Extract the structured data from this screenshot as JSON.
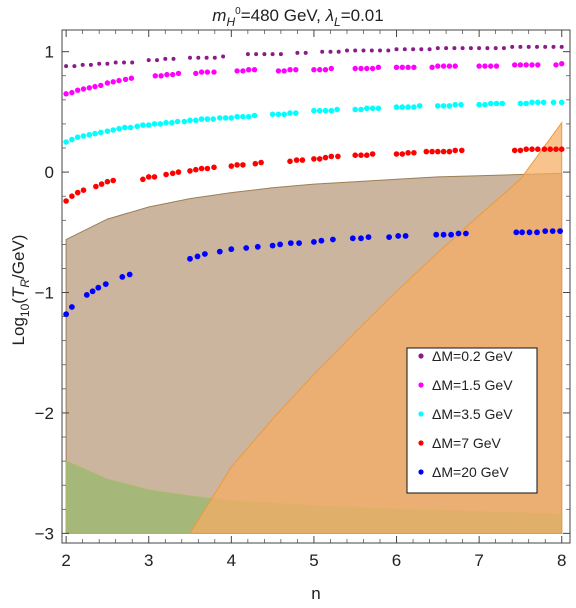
{
  "chart_data": {
    "type": "scatter",
    "title": {
      "m_sym": "m",
      "m_sub": "H",
      "m_sup": "0",
      "text": "=480 GeV, ",
      "lambda_sym": "λ",
      "lambda_sub": "L",
      "lambda_val": "=0.01"
    },
    "xlabel": "n",
    "ylabel": {
      "pre": "Log",
      "sub": "10",
      "mid": "(",
      "t": "T",
      "t_sub": "R",
      "post": "/GeV)"
    },
    "xlim": [
      1.95,
      8.1
    ],
    "ylim": [
      -3.08,
      1.18
    ],
    "xticks": [
      {
        "v": 2,
        "label": "2"
      },
      {
        "v": 3,
        "label": "3"
      },
      {
        "v": 4,
        "label": "4"
      },
      {
        "v": 5,
        "label": "5"
      },
      {
        "v": 6,
        "label": "6"
      },
      {
        "v": 7,
        "label": "7"
      },
      {
        "v": 8,
        "label": "8"
      }
    ],
    "yticks": [
      {
        "v": 1,
        "label": "1"
      },
      {
        "v": 0,
        "label": "0"
      },
      {
        "v": -1,
        "label": "−1"
      },
      {
        "v": -2,
        "label": "−2"
      },
      {
        "v": -3,
        "label": "−3"
      }
    ],
    "grid": false,
    "legend_position": "bottom-right",
    "regions": [
      {
        "name": "",
        "fill": "#b9987a",
        "stroke": "#9b7f55",
        "points": [
          [
            2.0,
            -3.0
          ],
          [
            2.0,
            -0.56
          ],
          [
            2.5,
            -0.39
          ],
          [
            3.0,
            -0.29
          ],
          [
            3.5,
            -0.22
          ],
          [
            4.0,
            -0.17
          ],
          [
            4.5,
            -0.13
          ],
          [
            5.0,
            -0.1
          ],
          [
            5.5,
            -0.08
          ],
          [
            6.0,
            -0.06
          ],
          [
            6.5,
            -0.04
          ],
          [
            7.0,
            -0.03
          ],
          [
            7.5,
            -0.02
          ],
          [
            8.0,
            -0.01
          ],
          [
            8.0,
            -3.0
          ]
        ]
      },
      {
        "name": "",
        "fill": "#97b86c",
        "stroke": "#a9bb6c",
        "points": [
          [
            2.0,
            -3.0
          ],
          [
            2.0,
            -2.4
          ],
          [
            2.5,
            -2.55
          ],
          [
            3.0,
            -2.64
          ],
          [
            3.5,
            -2.69
          ],
          [
            4.0,
            -2.73
          ],
          [
            5.0,
            -2.77
          ],
          [
            6.0,
            -2.8
          ],
          [
            7.0,
            -2.82
          ],
          [
            8.0,
            -2.84
          ],
          [
            8.0,
            -3.0
          ]
        ]
      },
      {
        "name": "",
        "fill": "#f7ac63",
        "stroke": "#ef9a3a",
        "points": [
          [
            3.5,
            -3.0
          ],
          [
            4.0,
            -2.45
          ],
          [
            4.5,
            -2.05
          ],
          [
            5.0,
            -1.68
          ],
          [
            5.5,
            -1.33
          ],
          [
            6.0,
            -0.99
          ],
          [
            6.5,
            -0.67
          ],
          [
            7.0,
            -0.36
          ],
          [
            7.5,
            -0.06
          ],
          [
            8.0,
            0.41
          ],
          [
            8.0,
            -3.0
          ]
        ]
      }
    ],
    "series": [
      {
        "name": "ΔM=0.2 GeV",
        "color": "#8b1a8b",
        "size": 2.0,
        "x": [
          2.0,
          2.1,
          2.2,
          2.3,
          2.4,
          2.5,
          2.6,
          2.7,
          2.8,
          3.0,
          3.1,
          3.2,
          3.3,
          3.5,
          3.6,
          3.7,
          3.8,
          3.9,
          4.2,
          4.3,
          4.4,
          4.5,
          4.6,
          4.8,
          4.9,
          5.1,
          5.2,
          5.3,
          5.4,
          5.5,
          5.6,
          5.7,
          5.8,
          5.9,
          6.0,
          6.1,
          6.2,
          6.3,
          6.4,
          6.5,
          6.6,
          6.7,
          6.8,
          6.9,
          7.0,
          7.1,
          7.2,
          7.3,
          7.4,
          7.5,
          7.6,
          7.7,
          7.8,
          7.9,
          8.0
        ],
        "y": [
          0.88,
          0.88,
          0.89,
          0.89,
          0.9,
          0.9,
          0.91,
          0.91,
          0.91,
          0.93,
          0.93,
          0.94,
          0.94,
          0.95,
          0.95,
          0.95,
          0.95,
          0.96,
          0.98,
          0.98,
          0.98,
          0.98,
          0.98,
          0.99,
          0.99,
          1.0,
          1.0,
          1.0,
          1.01,
          1.01,
          1.01,
          1.01,
          1.01,
          1.01,
          1.02,
          1.02,
          1.02,
          1.02,
          1.02,
          1.03,
          1.03,
          1.03,
          1.03,
          1.03,
          1.03,
          1.03,
          1.03,
          1.03,
          1.04,
          1.04,
          1.04,
          1.04,
          1.04,
          1.04,
          1.04
        ]
      },
      {
        "name": "ΔM=1.5 GeV",
        "color": "#ff00ff",
        "size": 2.7,
        "x": [
          2.0,
          2.07,
          2.14,
          2.21,
          2.28,
          2.35,
          2.42,
          2.5,
          2.57,
          2.64,
          2.72,
          2.79,
          3.08,
          3.15,
          3.22,
          3.29,
          3.36,
          3.57,
          3.64,
          3.71,
          3.79,
          4.07,
          4.14,
          4.21,
          4.28,
          4.57,
          4.64,
          4.71,
          4.78,
          5.0,
          5.07,
          5.14,
          5.21,
          5.5,
          5.57,
          5.64,
          5.71,
          5.78,
          6.0,
          6.07,
          6.14,
          6.21,
          6.43,
          6.5,
          6.57,
          6.64,
          6.71,
          7.0,
          7.07,
          7.14,
          7.21,
          7.43,
          7.5,
          7.57,
          7.64,
          7.71,
          7.93,
          8.0
        ],
        "y": [
          0.65,
          0.66,
          0.68,
          0.69,
          0.7,
          0.71,
          0.72,
          0.74,
          0.75,
          0.76,
          0.77,
          0.78,
          0.8,
          0.8,
          0.81,
          0.81,
          0.82,
          0.82,
          0.83,
          0.83,
          0.83,
          0.84,
          0.84,
          0.85,
          0.85,
          0.84,
          0.84,
          0.85,
          0.85,
          0.85,
          0.85,
          0.85,
          0.86,
          0.86,
          0.86,
          0.86,
          0.86,
          0.87,
          0.87,
          0.87,
          0.87,
          0.87,
          0.87,
          0.88,
          0.88,
          0.88,
          0.88,
          0.88,
          0.88,
          0.88,
          0.88,
          0.89,
          0.89,
          0.89,
          0.89,
          0.89,
          0.89,
          0.9
        ]
      },
      {
        "name": "ΔM=3.5 GeV",
        "color": "#00ffff",
        "size": 2.8,
        "x": [
          2.0,
          2.07,
          2.14,
          2.21,
          2.28,
          2.35,
          2.42,
          2.5,
          2.57,
          2.64,
          2.71,
          2.78,
          2.86,
          2.93,
          3.0,
          3.07,
          3.14,
          3.21,
          3.28,
          3.35,
          3.43,
          3.5,
          3.57,
          3.64,
          3.71,
          3.78,
          3.86,
          3.93,
          4.0,
          4.07,
          4.14,
          4.21,
          4.28,
          4.5,
          4.57,
          4.64,
          4.71,
          4.78,
          5.0,
          5.07,
          5.14,
          5.21,
          5.28,
          5.5,
          5.57,
          5.64,
          5.71,
          5.78,
          6.0,
          6.07,
          6.14,
          6.21,
          6.28,
          6.5,
          6.57,
          6.64,
          6.71,
          6.78,
          7.0,
          7.07,
          7.14,
          7.21,
          7.28,
          7.5,
          7.57,
          7.64,
          7.71,
          7.78,
          7.9,
          8.0
        ],
        "y": [
          0.25,
          0.27,
          0.29,
          0.3,
          0.31,
          0.32,
          0.33,
          0.34,
          0.35,
          0.36,
          0.37,
          0.37,
          0.38,
          0.39,
          0.39,
          0.4,
          0.4,
          0.41,
          0.41,
          0.42,
          0.42,
          0.43,
          0.43,
          0.44,
          0.44,
          0.44,
          0.45,
          0.45,
          0.45,
          0.46,
          0.46,
          0.46,
          0.47,
          0.48,
          0.48,
          0.48,
          0.49,
          0.49,
          0.51,
          0.51,
          0.51,
          0.51,
          0.52,
          0.52,
          0.52,
          0.53,
          0.53,
          0.53,
          0.54,
          0.54,
          0.54,
          0.54,
          0.55,
          0.55,
          0.55,
          0.55,
          0.56,
          0.56,
          0.56,
          0.56,
          0.57,
          0.57,
          0.57,
          0.57,
          0.57,
          0.58,
          0.58,
          0.58,
          0.58,
          0.58
        ]
      },
      {
        "name": "ΔM=7 GeV",
        "color": "#ff0000",
        "size": 2.8,
        "x": [
          2.0,
          2.07,
          2.14,
          2.21,
          2.36,
          2.43,
          2.5,
          2.57,
          2.93,
          3.0,
          3.07,
          3.21,
          3.29,
          3.36,
          3.5,
          3.57,
          3.64,
          3.71,
          3.79,
          4.0,
          4.07,
          4.14,
          4.29,
          4.36,
          4.71,
          4.79,
          4.86,
          5.0,
          5.07,
          5.14,
          5.21,
          5.29,
          5.5,
          5.57,
          5.64,
          5.71,
          6.0,
          6.07,
          6.14,
          6.21,
          6.36,
          6.43,
          6.5,
          6.57,
          6.64,
          6.71,
          6.79,
          7.43,
          7.5,
          7.57,
          7.64,
          7.71,
          7.79,
          7.86,
          7.93,
          8.0
        ],
        "y": [
          -0.24,
          -0.2,
          -0.17,
          -0.15,
          -0.12,
          -0.1,
          -0.08,
          -0.07,
          -0.06,
          -0.04,
          -0.04,
          -0.02,
          -0.01,
          0.0,
          0.01,
          0.02,
          0.03,
          0.03,
          0.04,
          0.05,
          0.06,
          0.06,
          0.07,
          0.08,
          0.09,
          0.1,
          0.1,
          0.11,
          0.11,
          0.12,
          0.13,
          0.13,
          0.14,
          0.14,
          0.14,
          0.15,
          0.15,
          0.15,
          0.16,
          0.16,
          0.17,
          0.17,
          0.17,
          0.17,
          0.17,
          0.18,
          0.18,
          0.18,
          0.18,
          0.19,
          0.19,
          0.19,
          0.19,
          0.19,
          0.19,
          0.19
        ]
      },
      {
        "name": "ΔM=20 GeV",
        "color": "#0000ff",
        "size": 2.9,
        "x": [
          2.0,
          2.07,
          2.25,
          2.32,
          2.39,
          2.48,
          2.68,
          2.77,
          3.5,
          3.59,
          3.68,
          3.86,
          4.0,
          4.18,
          4.32,
          4.5,
          4.59,
          4.72,
          4.82,
          5.0,
          5.09,
          5.23,
          5.47,
          5.57,
          5.66,
          5.91,
          6.02,
          6.11,
          6.48,
          6.57,
          6.66,
          6.75,
          6.84,
          7.45,
          7.52,
          7.61,
          7.7,
          7.8,
          7.89,
          7.98
        ],
        "y": [
          -1.18,
          -1.12,
          -1.02,
          -0.99,
          -0.96,
          -0.93,
          -0.87,
          -0.85,
          -0.72,
          -0.7,
          -0.68,
          -0.66,
          -0.64,
          -0.63,
          -0.62,
          -0.61,
          -0.6,
          -0.59,
          -0.59,
          -0.58,
          -0.57,
          -0.56,
          -0.55,
          -0.55,
          -0.54,
          -0.54,
          -0.53,
          -0.53,
          -0.52,
          -0.52,
          -0.52,
          -0.51,
          -0.51,
          -0.5,
          -0.5,
          -0.5,
          -0.5,
          -0.49,
          -0.49,
          -0.49
        ]
      }
    ]
  }
}
